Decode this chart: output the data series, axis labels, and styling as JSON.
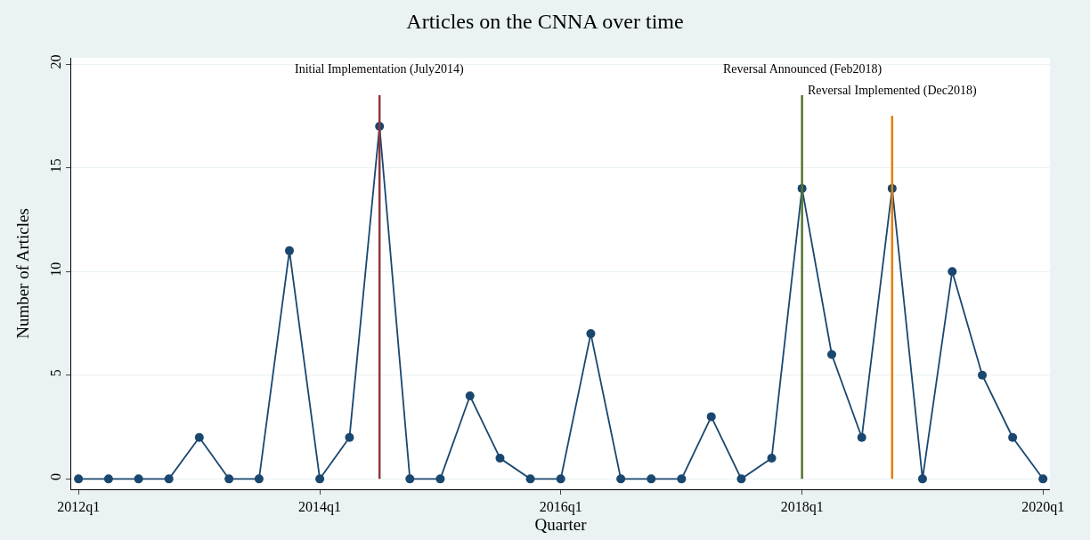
{
  "chart_data": {
    "type": "line",
    "title": "Articles on the CNNA over time",
    "xlabel": "Quarter",
    "ylabel": "Number of Articles",
    "x": [
      "2012-01",
      "2012-04",
      "2012-07",
      "2012-10",
      "2013-01",
      "2013-04",
      "2013-07",
      "2013-10",
      "2014-01",
      "2014-04",
      "2014-07",
      "2014-10",
      "2015-01",
      "2015-04",
      "2015-07",
      "2015-10",
      "2016-01",
      "2016-04",
      "2016-07",
      "2016-10",
      "2017-01",
      "2017-04",
      "2017-07",
      "2017-10",
      "2018-01",
      "2018-04",
      "2018-07",
      "2018-10",
      "2019-01",
      "2019-04",
      "2019-07",
      "2019-10",
      "2020-01"
    ],
    "series": [
      {
        "color": "#1a476f",
        "values": [
          0,
          0,
          0,
          0,
          2,
          0,
          0,
          11,
          0,
          2,
          17,
          0,
          0,
          4,
          1,
          0,
          0,
          7,
          0,
          0,
          0,
          3,
          0,
          1,
          14,
          6,
          2,
          14,
          0,
          10,
          5,
          2,
          0
        ]
      }
    ],
    "marker": "circle",
    "line_style": "solid",
    "grid": "y",
    "xlim": [
      "2011-12-10",
      "2020-01-22"
    ],
    "xticks": [
      {
        "value": "2012-01",
        "label": "2012q1"
      },
      {
        "value": "2014-01",
        "label": "2014q1"
      },
      {
        "value": "2016-01",
        "label": "2016q1"
      },
      {
        "value": "2018-01",
        "label": "2018q1"
      },
      {
        "value": "2020-01",
        "label": "2020q1"
      }
    ],
    "ylim": [
      -0.5,
      20.3
    ],
    "yticks": [
      0,
      5,
      10,
      15,
      20
    ],
    "ref_lines": [
      {
        "axis": "x",
        "value": "2014-07",
        "label": "Initial Implementation (July2014)",
        "color": "#90353b"
      },
      {
        "axis": "x",
        "value": "2018-01",
        "label": "Reversal Announced (Feb2018)",
        "color": "#55752f"
      },
      {
        "axis": "x",
        "value": "2018-10",
        "label": "Reversal Implemented (Dec2018)",
        "color": "#e37e00"
      }
    ]
  }
}
